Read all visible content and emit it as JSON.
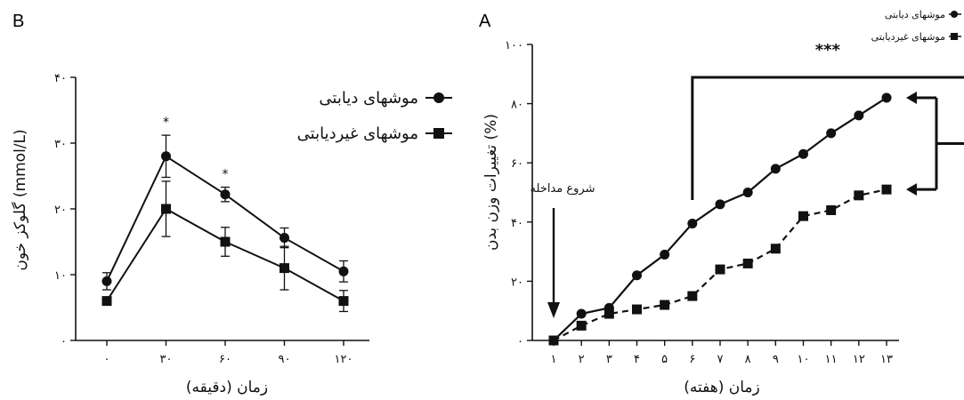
{
  "chart_data": [
    {
      "panel": "B",
      "type": "line",
      "ylabel": "گلوکز خون (mmol/L)",
      "xlabel": "زمان (دقیقه)",
      "x": [
        0,
        30,
        60,
        90,
        120
      ],
      "x_tick_labels": [
        "۰",
        "۳۰",
        "۶۰",
        "۹۰",
        "۱۲۰"
      ],
      "ylim": [
        0,
        40
      ],
      "y_ticks": [
        0,
        10,
        20,
        30,
        40
      ],
      "y_tick_labels": [
        "۰",
        "۱۰",
        "۲۰",
        "۳۰",
        "۴۰"
      ],
      "series": [
        {
          "name": "موشهای دیابتی",
          "marker": "circle",
          "line": "solid",
          "values": [
            9,
            28,
            22.2,
            15.6,
            10.5
          ],
          "errors": [
            1.3,
            3.2,
            1.1,
            1.5,
            1.6
          ]
        },
        {
          "name": "موشهای غیردیابتی",
          "marker": "square",
          "line": "solid",
          "values": [
            6,
            20,
            15,
            11,
            6
          ],
          "errors": [
            0.6,
            4.2,
            2.2,
            3.3,
            1.6
          ]
        }
      ],
      "annotations": [
        {
          "text": "*",
          "x": 30
        },
        {
          "text": "*",
          "x": 60
        }
      ],
      "legend_placement": "top-right"
    },
    {
      "panel": "A",
      "type": "line",
      "ylabel": "تغییرات وزن بدن (%)",
      "xlabel": "زمان (هفته)",
      "x": [
        1,
        2,
        3,
        4,
        5,
        6,
        7,
        8,
        9,
        10,
        11,
        12,
        13
      ],
      "x_tick_labels": [
        "۱",
        "۲",
        "۳",
        "۴",
        "۵",
        "۶",
        "۷",
        "۸",
        "۹",
        "۱۰",
        "۱۱",
        "۱۲",
        "۱۳"
      ],
      "ylim": [
        0,
        100
      ],
      "y_ticks": [
        0,
        20,
        40,
        60,
        80,
        100
      ],
      "y_tick_labels": [
        "۰",
        "۲۰",
        "۴۰",
        "۶۰",
        "۸۰",
        "۱۰۰"
      ],
      "series": [
        {
          "name": "موشهای دیابتی",
          "marker": "circle",
          "line": "solid",
          "values": [
            0,
            9,
            11,
            22,
            29,
            39.5,
            46,
            50,
            58,
            63,
            70,
            76,
            82
          ]
        },
        {
          "name": "موشهای غیردیابتی",
          "marker": "square",
          "line": "dashed",
          "values": [
            0,
            5,
            9,
            10.5,
            12,
            15,
            24,
            26,
            31,
            42,
            44,
            49,
            51
          ]
        }
      ],
      "annotations": [
        {
          "text": "شروع مداخله",
          "x": 1
        },
        {
          "text": "***",
          "x": 6
        }
      ],
      "legend_placement": "top-right"
    }
  ]
}
